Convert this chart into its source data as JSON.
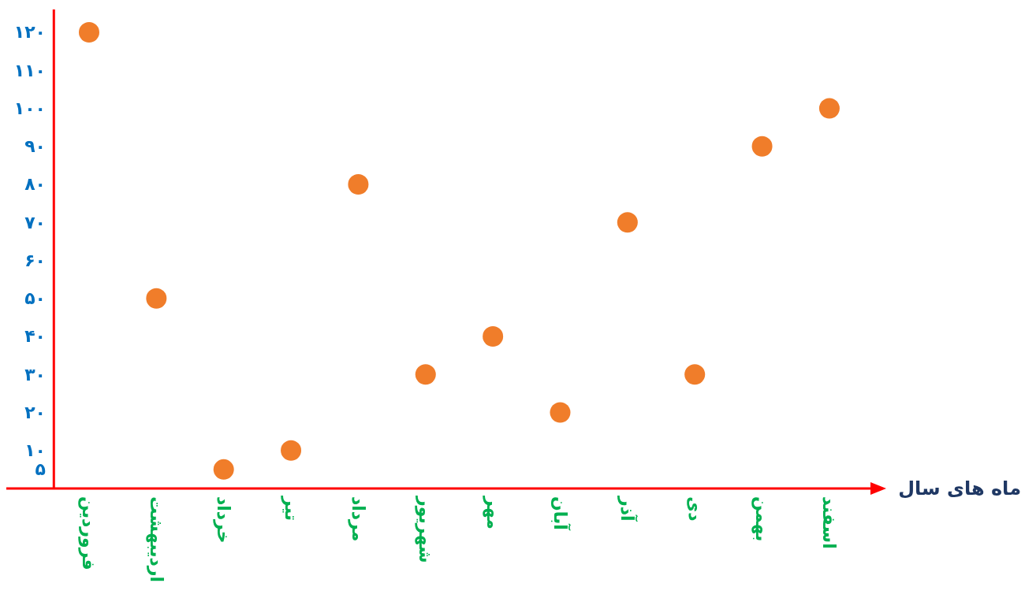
{
  "chart_data": {
    "type": "scatter",
    "xlabel": "ماه های سال",
    "categories": [
      "فروردین",
      "اردیبهشت",
      "خرداد",
      "تیر",
      "مرداد",
      "شهریور",
      "مهر",
      "آبان",
      "آذر",
      "دی",
      "بهمن",
      "اسفند"
    ],
    "series": [
      {
        "color": "#f07d2a",
        "values": [
          120,
          50,
          5,
          10,
          80,
          30,
          40,
          20,
          70,
          30,
          90,
          100
        ]
      }
    ],
    "ylim": [
      0,
      126
    ],
    "yticks": [
      {
        "value": 5,
        "label": "۵"
      },
      {
        "value": 10,
        "label": "۱۰"
      },
      {
        "value": 20,
        "label": "۲۰"
      },
      {
        "value": 30,
        "label": "۳۰"
      },
      {
        "value": 40,
        "label": "۴۰"
      },
      {
        "value": 50,
        "label": "۵۰"
      },
      {
        "value": 60,
        "label": "۶۰"
      },
      {
        "value": 70,
        "label": "۷۰"
      },
      {
        "value": 80,
        "label": "۸۰"
      },
      {
        "value": 90,
        "label": "۹۰"
      },
      {
        "value": 100,
        "label": "۱۰۰"
      },
      {
        "value": 110,
        "label": "۱۱۰"
      },
      {
        "value": 120,
        "label": "۱۲۰"
      }
    ],
    "marker": "circle",
    "grid": false
  }
}
